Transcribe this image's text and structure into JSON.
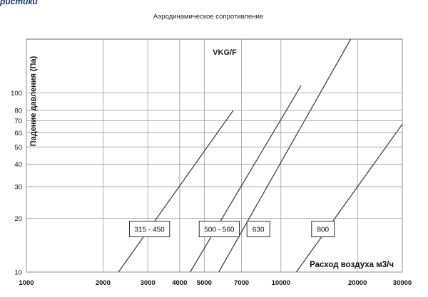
{
  "page": {
    "heading": "ристики"
  },
  "chart_data": {
    "type": "line",
    "title": "Аэродинамическое сопротивление",
    "subtitle": "VKG/F",
    "xlabel": "Расход воздуха м3/ч",
    "ylabel": "Падение давления (Па)",
    "x_scale": "log",
    "y_scale": "log",
    "xlim": [
      1000,
      30000
    ],
    "ylim": [
      10,
      200
    ],
    "grid": true,
    "x_ticks": [
      1000,
      2000,
      3000,
      4000,
      5000,
      7000,
      10000,
      20000,
      30000
    ],
    "y_ticks": [
      10,
      20,
      30,
      40,
      50,
      60,
      70,
      80,
      100
    ],
    "series": [
      {
        "name": "315 - 450",
        "x": [
          2300,
          6500
        ],
        "y": [
          10,
          80
        ]
      },
      {
        "name": "500 - 560",
        "x": [
          4400,
          12000
        ],
        "y": [
          10,
          110
        ]
      },
      {
        "name": "630",
        "x": [
          5700,
          18800
        ],
        "y": [
          10,
          200
        ]
      },
      {
        "name": "800",
        "x": [
          11500,
          30000
        ],
        "y": [
          10,
          67
        ]
      }
    ],
    "line_color": "#444444",
    "grid_color": "#9a9a9a"
  }
}
